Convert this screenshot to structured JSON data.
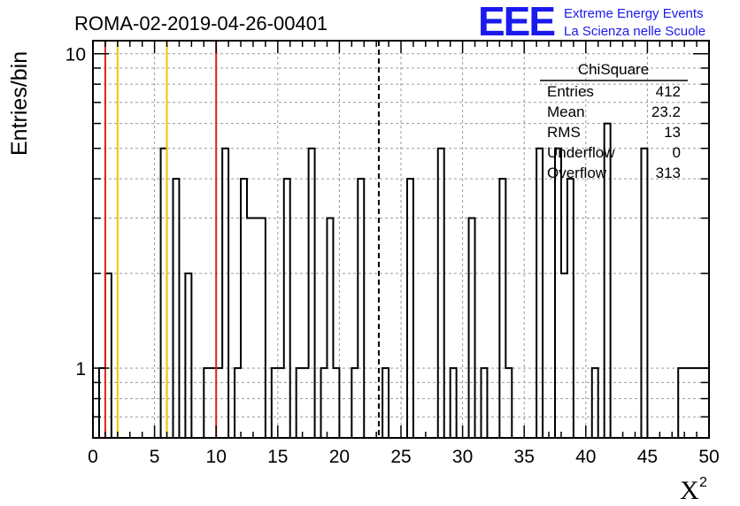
{
  "chart_data": {
    "type": "bar",
    "title": "ROMA-02-2019-04-26-00401",
    "xlabel": "X",
    "xlabel_superscript": "2",
    "ylabel": "Entries/bin",
    "xlim": [
      0,
      50
    ],
    "ylim": [
      0.6,
      11
    ],
    "y_scale": "log",
    "grid": true,
    "x_ticks": [
      "0",
      "5",
      "10",
      "15",
      "20",
      "25",
      "30",
      "35",
      "40",
      "45",
      "50"
    ],
    "y_ticks": [
      "1",
      "10"
    ],
    "bin_width": 0.5,
    "bins": [
      {
        "x": 0.5,
        "y": 1
      },
      {
        "x": 1.0,
        "y": 2
      },
      {
        "x": 5.5,
        "y": 5
      },
      {
        "x": 6.5,
        "y": 4
      },
      {
        "x": 7.5,
        "y": 2
      },
      {
        "x": 9.0,
        "y": 1
      },
      {
        "x": 9.5,
        "y": 1
      },
      {
        "x": 10.0,
        "y": 1
      },
      {
        "x": 10.5,
        "y": 5
      },
      {
        "x": 11.5,
        "y": 1
      },
      {
        "x": 12.0,
        "y": 4
      },
      {
        "x": 12.5,
        "y": 3
      },
      {
        "x": 13.0,
        "y": 3
      },
      {
        "x": 13.5,
        "y": 3
      },
      {
        "x": 14.5,
        "y": 1
      },
      {
        "x": 15.0,
        "y": 1
      },
      {
        "x": 15.5,
        "y": 4
      },
      {
        "x": 16.5,
        "y": 1
      },
      {
        "x": 17.0,
        "y": 1
      },
      {
        "x": 17.5,
        "y": 5
      },
      {
        "x": 18.5,
        "y": 1
      },
      {
        "x": 19.0,
        "y": 3
      },
      {
        "x": 19.5,
        "y": 1
      },
      {
        "x": 21.0,
        "y": 1
      },
      {
        "x": 21.5,
        "y": 4
      },
      {
        "x": 23.5,
        "y": 1
      },
      {
        "x": 25.5,
        "y": 4
      },
      {
        "x": 28.0,
        "y": 5
      },
      {
        "x": 29.0,
        "y": 1
      },
      {
        "x": 30.5,
        "y": 3
      },
      {
        "x": 31.5,
        "y": 1
      },
      {
        "x": 33.0,
        "y": 4
      },
      {
        "x": 33.5,
        "y": 1
      },
      {
        "x": 36.0,
        "y": 5
      },
      {
        "x": 37.5,
        "y": 5
      },
      {
        "x": 38.0,
        "y": 2
      },
      {
        "x": 38.5,
        "y": 4
      },
      {
        "x": 40.5,
        "y": 1
      },
      {
        "x": 41.5,
        "y": 6
      },
      {
        "x": 44.5,
        "y": 5
      },
      {
        "x": 47.5,
        "y": 1
      },
      {
        "x": 48.0,
        "y": 1
      },
      {
        "x": 48.5,
        "y": 1
      },
      {
        "x": 49.0,
        "y": 1
      },
      {
        "x": 49.5,
        "y": 1
      }
    ],
    "reference_lines": [
      {
        "x": 1.0,
        "color": "#e02020",
        "style": "solid"
      },
      {
        "x": 2.0,
        "color": "#f5c400",
        "style": "solid"
      },
      {
        "x": 6.0,
        "color": "#f5c400",
        "style": "solid"
      },
      {
        "x": 10.0,
        "color": "#e02020",
        "style": "solid"
      },
      {
        "x": 23.2,
        "color": "#000000",
        "style": "dashed"
      }
    ],
    "stats_box": {
      "title": "ChiSquare",
      "rows": [
        {
          "label": "Entries",
          "value": "412"
        },
        {
          "label": "Mean",
          "value": "23.2"
        },
        {
          "label": "RMS",
          "value": "13"
        },
        {
          "label": "Underflow",
          "value": "0"
        },
        {
          "label": "Overflow",
          "value": "313"
        }
      ]
    }
  },
  "logo": {
    "mark": "EEE",
    "line1": "Extreme Energy Events",
    "line2": "La Scienza nelle Scuole",
    "color": "#1a1aee"
  }
}
